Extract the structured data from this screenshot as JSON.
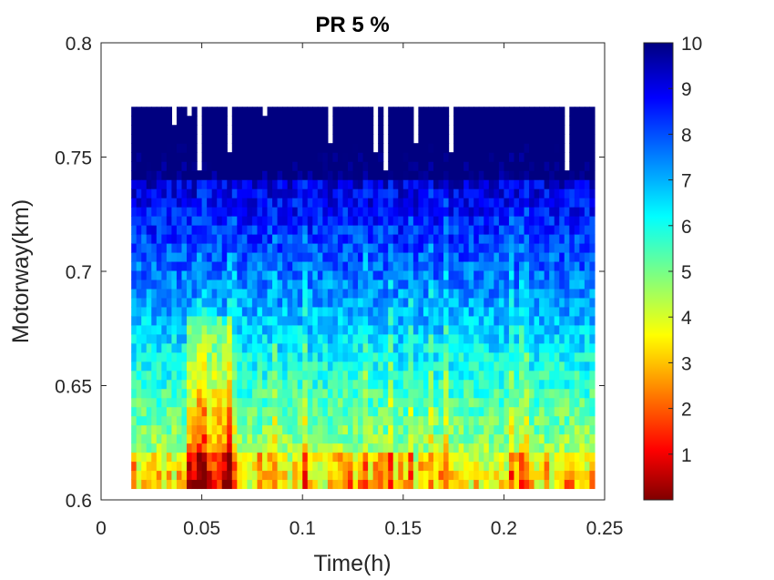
{
  "chart_data": {
    "type": "heatmap",
    "title": "PR 5 %",
    "xlabel": "Time(h)",
    "ylabel": "Motorway(km)",
    "xlim": [
      0,
      0.25
    ],
    "ylim": [
      0.6,
      0.8
    ],
    "x_ticks": [
      "0",
      "0.05",
      "0.1",
      "0.15",
      "0.2",
      "0.25"
    ],
    "y_ticks": [
      "0.6",
      "0.65",
      "0.7",
      "0.75",
      "0.8"
    ],
    "colorbar": {
      "colormap": "jet-reversed",
      "range": [
        0,
        10
      ],
      "ticks": [
        "1",
        "2",
        "3",
        "4",
        "5",
        "6",
        "7",
        "8",
        "9",
        "10"
      ]
    },
    "data_extent": {
      "time_h": [
        0.015,
        0.245
      ],
      "motorway_km": [
        0.605,
        0.772
      ]
    }
  }
}
